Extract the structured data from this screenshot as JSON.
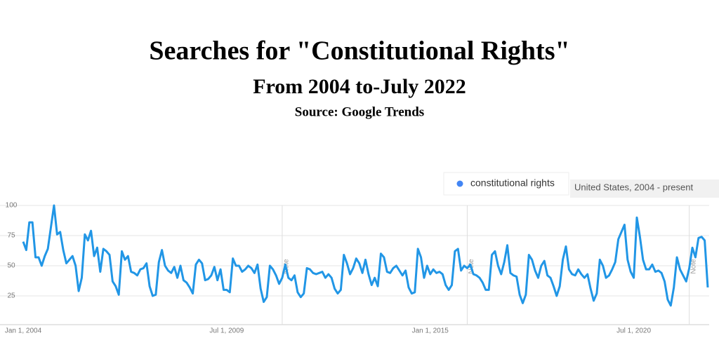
{
  "chart_data": {
    "type": "line",
    "title": "Searches for \"Constitutional Rights\"",
    "subtitle": "From 2004 to-July 2022",
    "source": "Source: Google Trends",
    "region": "United States, 2004 - present",
    "categories": [
      "Jan 1, 2004",
      null,
      null,
      null,
      null,
      null,
      null,
      null,
      null,
      null,
      null,
      null,
      null,
      null,
      null,
      null,
      null,
      null,
      null,
      null,
      null,
      null,
      null,
      null,
      null,
      null,
      null,
      null,
      null,
      null,
      null,
      null,
      null,
      null,
      null,
      null,
      null,
      null,
      null,
      null,
      null,
      null,
      null,
      null,
      null,
      null,
      null,
      null,
      null,
      null,
      null,
      null,
      null,
      null,
      null,
      null,
      null,
      null,
      null,
      null,
      null,
      null,
      null,
      null,
      null,
      null,
      "Jul 1, 2009",
      null,
      null,
      null,
      null,
      null,
      null,
      null,
      null,
      null,
      null,
      null,
      null,
      null,
      null,
      null,
      null,
      null,
      null,
      null,
      null,
      null,
      null,
      null,
      null,
      null,
      null,
      null,
      null,
      null,
      null,
      null,
      null,
      null,
      null,
      null,
      null,
      null,
      null,
      null,
      null,
      null,
      null,
      null,
      null,
      null,
      null,
      null,
      null,
      null,
      null,
      null,
      null,
      null,
      null,
      null,
      null,
      null,
      null,
      null,
      null,
      null,
      null,
      null,
      null,
      null,
      "Jan 1, 2015",
      null,
      null,
      null,
      null,
      null,
      null,
      null,
      null,
      null,
      null,
      null,
      null,
      null,
      null,
      null,
      null,
      null,
      null,
      null,
      null,
      null,
      null,
      null,
      null,
      null,
      null,
      null,
      null,
      null,
      null,
      null,
      null,
      null,
      null,
      null,
      null,
      null,
      null,
      null,
      null,
      null,
      null,
      null,
      null,
      null,
      null,
      null,
      null,
      null,
      null,
      null,
      null,
      null,
      null,
      null,
      null,
      null,
      null,
      null,
      null,
      null,
      null,
      null,
      null,
      null,
      "Jul 1, 2020",
      null,
      null,
      null,
      null,
      null,
      null,
      null,
      null,
      null,
      null,
      null,
      null,
      null,
      null,
      null,
      null,
      null,
      null,
      null,
      null,
      null,
      null,
      null,
      null
    ],
    "series": [
      {
        "name": "constitutional rights",
        "color": "#4285f4",
        "line_color": "#2196e6",
        "values": [
          70,
          63,
          86,
          86,
          57,
          57,
          50,
          58,
          64,
          82,
          100,
          76,
          78,
          63,
          52,
          55,
          58,
          50,
          29,
          40,
          76,
          71,
          79,
          58,
          65,
          45,
          64,
          62,
          59,
          37,
          33,
          26,
          62,
          55,
          58,
          45,
          44,
          42,
          47,
          48,
          52,
          33,
          25,
          26,
          53,
          63,
          50,
          46,
          44,
          49,
          40,
          50,
          38,
          36,
          32,
          27,
          51,
          55,
          52,
          38,
          39,
          42,
          49,
          38,
          47,
          30,
          30,
          28,
          56,
          50,
          50,
          45,
          47,
          50,
          48,
          44,
          51,
          31,
          20,
          24,
          50,
          47,
          42,
          35,
          40,
          51,
          40,
          38,
          42,
          28,
          24,
          27,
          48,
          47,
          44,
          43,
          44,
          45,
          40,
          43,
          40,
          31,
          27,
          30,
          59,
          52,
          43,
          48,
          56,
          52,
          44,
          55,
          43,
          34,
          40,
          33,
          60,
          57,
          45,
          44,
          48,
          50,
          46,
          42,
          46,
          32,
          27,
          28,
          64,
          57,
          40,
          50,
          43,
          47,
          44,
          45,
          43,
          34,
          30,
          34,
          62,
          64,
          46,
          50,
          48,
          51,
          43,
          42,
          40,
          36,
          30,
          30,
          59,
          62,
          50,
          43,
          53,
          67,
          44,
          42,
          41,
          26,
          19,
          26,
          59,
          55,
          46,
          40,
          50,
          54,
          42,
          40,
          33,
          25,
          33,
          55,
          66,
          47,
          43,
          42,
          47,
          43,
          40,
          43,
          31,
          21,
          27,
          55,
          50,
          40,
          42,
          47,
          53,
          72,
          78,
          84,
          55,
          45,
          40,
          90,
          74,
          55,
          47,
          47,
          51,
          45,
          46,
          44,
          37,
          22,
          17,
          32,
          57,
          47,
          42,
          37,
          48,
          65,
          57,
          73,
          74,
          71,
          32
        ]
      }
    ],
    "notes": [
      {
        "at": 84,
        "label": "Note"
      },
      {
        "at": 144,
        "label": "Note"
      },
      {
        "at": 216,
        "label": "Note"
      }
    ],
    "ylim": [
      0,
      100
    ],
    "yticks": [
      25,
      50,
      75,
      100
    ],
    "grid": true
  }
}
